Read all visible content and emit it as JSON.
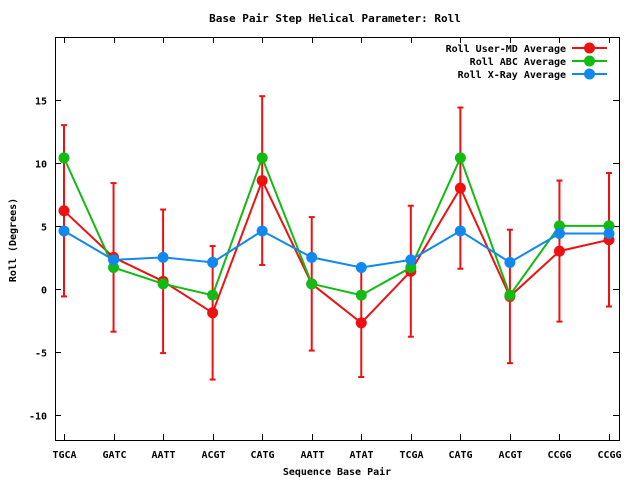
{
  "chart_data": {
    "type": "line",
    "title": "Base Pair Step Helical Parameter: Roll",
    "xlabel": "Sequence Base Pair",
    "ylabel": "Roll (Degrees)",
    "categories": [
      "TGCA",
      "GATC",
      "AATT",
      "ACGT",
      "CATG",
      "AATT",
      "ATAT",
      "TCGA",
      "CATG",
      "ACGT",
      "CCGG",
      "CCGG"
    ],
    "ylim": [
      -12,
      20
    ],
    "yticks": [
      -10,
      -5,
      0,
      5,
      10,
      15
    ],
    "legend_position": "top-right",
    "series": [
      {
        "name": "Roll User-MD Average",
        "color": "#ee1111",
        "values": [
          6.2,
          2.5,
          0.6,
          -1.9,
          8.6,
          0.4,
          -2.7,
          1.4,
          8.0,
          -0.6,
          3.0,
          3.9
        ],
        "error": [
          6.8,
          5.9,
          5.7,
          5.3,
          6.7,
          5.3,
          4.3,
          5.2,
          6.4,
          5.3,
          5.6,
          5.3
        ]
      },
      {
        "name": "Roll ABC Average",
        "color": "#11bb11",
        "values": [
          10.4,
          1.7,
          0.4,
          -0.5,
          10.4,
          0.4,
          -0.5,
          1.7,
          10.4,
          -0.5,
          5.0,
          5.0
        ]
      },
      {
        "name": "Roll X-Ray Average",
        "color": "#1188ee",
        "values": [
          4.6,
          2.3,
          2.5,
          2.1,
          4.6,
          2.5,
          1.7,
          2.3,
          4.6,
          2.1,
          4.4,
          4.4
        ]
      }
    ]
  }
}
